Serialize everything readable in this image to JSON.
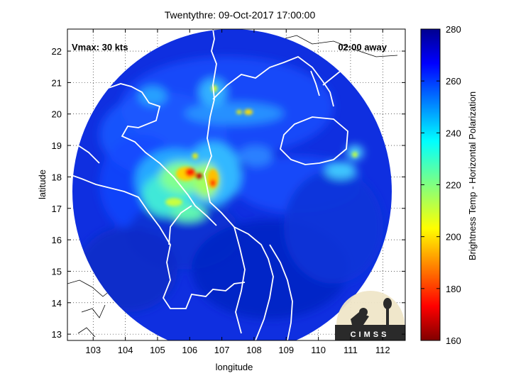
{
  "title": "Twentythre: 09-Oct-2017 17:00:00",
  "xlabel": "longitude",
  "ylabel": "latitude",
  "vmax_label": "Vmax: 30 kts",
  "time_label": "02:00 away",
  "colorbar": {
    "label": "Brightness Temp - Horizontal Polarization",
    "ticks": [
      "280",
      "260",
      "240",
      "220",
      "200",
      "180",
      "160"
    ]
  },
  "x_ticks": [
    "103",
    "104",
    "105",
    "106",
    "107",
    "108",
    "109",
    "110",
    "111",
    "112"
  ],
  "y_ticks": [
    "22",
    "21",
    "20",
    "19",
    "18",
    "17",
    "16",
    "15",
    "14",
    "13"
  ],
  "logo": {
    "text": "CIMSS"
  },
  "chart_data": {
    "type": "heatmap",
    "title": "Twentythre: 09-Oct-2017 17:00:00",
    "xlabel": "longitude",
    "ylabel": "latitude",
    "xlim": [
      102.2,
      112.7
    ],
    "ylim": [
      12.8,
      22.7
    ],
    "grid": true,
    "colorbar_label": "Brightness Temp - Horizontal Polarization",
    "colorbar_range": [
      160,
      280
    ],
    "colormap": "jet",
    "storm_name": "Twentythre",
    "vmax": "30 kts",
    "colors": {
      "cold": "#8b0000",
      "warm": "#00008f",
      "coast": "#ffffff"
    }
  }
}
